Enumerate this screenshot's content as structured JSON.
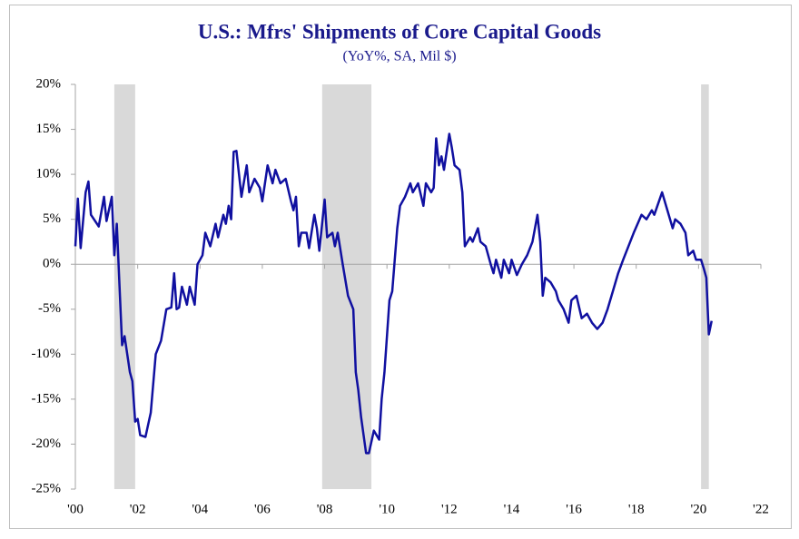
{
  "chart_data": {
    "type": "line",
    "title": "U.S.: Mfrs' Shipments of Core Capital Goods",
    "subtitle": "(YoY%, SA, Mil $)",
    "xlim": [
      2000,
      2022
    ],
    "ylim": [
      -25,
      20
    ],
    "xticks": [
      {
        "value": 2000,
        "label": "'00"
      },
      {
        "value": 2002,
        "label": "'02"
      },
      {
        "value": 2004,
        "label": "'04"
      },
      {
        "value": 2006,
        "label": "'06"
      },
      {
        "value": 2008,
        "label": "'08"
      },
      {
        "value": 2010,
        "label": "'10"
      },
      {
        "value": 2012,
        "label": "'12"
      },
      {
        "value": 2014,
        "label": "'14"
      },
      {
        "value": 2016,
        "label": "'16"
      },
      {
        "value": 2018,
        "label": "'18"
      },
      {
        "value": 2020,
        "label": "'20"
      },
      {
        "value": 2022,
        "label": "'22"
      }
    ],
    "yticks": [
      {
        "value": 20,
        "label": "20%"
      },
      {
        "value": 15,
        "label": "15%"
      },
      {
        "value": 10,
        "label": "10%"
      },
      {
        "value": 5,
        "label": "5%"
      },
      {
        "value": 0,
        "label": "0%"
      },
      {
        "value": -5,
        "label": "-5%"
      },
      {
        "value": -10,
        "label": "-10%"
      },
      {
        "value": -15,
        "label": "-15%"
      },
      {
        "value": -20,
        "label": "-20%"
      },
      {
        "value": -25,
        "label": "-25%"
      }
    ],
    "shaded_ranges": [
      [
        2001.25,
        2001.92
      ],
      [
        2007.92,
        2009.5
      ],
      [
        2020.08,
        2020.33
      ]
    ],
    "shade_color": "#d9d9d9",
    "series": [
      {
        "color": "#1010a0",
        "x": [
          2000.0,
          2000.08,
          2000.17,
          2000.33,
          2000.42,
          2000.5,
          2000.75,
          2000.92,
          2001.0,
          2001.17,
          2001.25,
          2001.33,
          2001.5,
          2001.58,
          2001.75,
          2001.83,
          2001.92,
          2002.0,
          2002.08,
          2002.25,
          2002.42,
          2002.58,
          2002.75,
          2002.92,
          2003.08,
          2003.17,
          2003.25,
          2003.33,
          2003.42,
          2003.58,
          2003.67,
          2003.83,
          2003.92,
          2004.08,
          2004.17,
          2004.33,
          2004.5,
          2004.58,
          2004.75,
          2004.83,
          2004.92,
          2005.0,
          2005.08,
          2005.17,
          2005.33,
          2005.5,
          2005.58,
          2005.75,
          2005.92,
          2006.0,
          2006.17,
          2006.33,
          2006.42,
          2006.58,
          2006.75,
          2006.92,
          2007.0,
          2007.08,
          2007.17,
          2007.25,
          2007.42,
          2007.5,
          2007.67,
          2007.75,
          2007.83,
          2008.0,
          2008.08,
          2008.25,
          2008.33,
          2008.42,
          2008.58,
          2008.75,
          2008.92,
          2009.0,
          2009.08,
          2009.17,
          2009.33,
          2009.42,
          2009.58,
          2009.75,
          2009.83,
          2009.92,
          2010.08,
          2010.17,
          2010.33,
          2010.42,
          2010.58,
          2010.75,
          2010.83,
          2011.0,
          2011.17,
          2011.25,
          2011.42,
          2011.5,
          2011.58,
          2011.67,
          2011.75,
          2011.83,
          2012.0,
          2012.08,
          2012.17,
          2012.33,
          2012.42,
          2012.5,
          2012.67,
          2012.75,
          2012.92,
          2013.0,
          2013.17,
          2013.33,
          2013.42,
          2013.5,
          2013.67,
          2013.75,
          2013.92,
          2014.0,
          2014.17,
          2014.33,
          2014.5,
          2014.67,
          2014.83,
          2014.92,
          2015.0,
          2015.08,
          2015.25,
          2015.42,
          2015.5,
          2015.67,
          2015.83,
          2015.92,
          2016.08,
          2016.25,
          2016.42,
          2016.58,
          2016.75,
          2016.92,
          2017.08,
          2017.25,
          2017.42,
          2017.58,
          2017.75,
          2017.92,
          2018.17,
          2018.33,
          2018.5,
          2018.58,
          2018.83,
          2019.0,
          2019.17,
          2019.25,
          2019.42,
          2019.58,
          2019.67,
          2019.83,
          2019.92,
          2020.08,
          2020.17,
          2020.25,
          2020.33,
          2020.42
        ],
        "values": [
          2,
          7.3,
          1.8,
          8,
          9.2,
          5.5,
          4.2,
          7.5,
          4.8,
          7.5,
          1,
          4.5,
          -9,
          -8,
          -12,
          -13,
          -17.5,
          -17.2,
          -19,
          -19.2,
          -16.5,
          -10,
          -8.5,
          -5,
          -4.8,
          -1,
          -5,
          -4.8,
          -2.5,
          -4.5,
          -2.5,
          -4.5,
          0,
          1,
          3.5,
          2,
          4.5,
          3,
          5.5,
          4.5,
          6.5,
          5,
          12.5,
          12.6,
          7.5,
          11,
          8,
          9.5,
          8.5,
          7,
          11,
          9,
          10.5,
          9,
          9.5,
          7,
          6,
          7.5,
          2,
          3.5,
          3.5,
          1.8,
          5.5,
          4,
          1.5,
          7.2,
          3,
          3.5,
          2,
          3.5,
          0,
          -3.5,
          -5,
          -12,
          -14,
          -17,
          -21,
          -21,
          -18.5,
          -19.5,
          -15,
          -12,
          -4,
          -3,
          4,
          6.5,
          7.5,
          9,
          8,
          9,
          6.5,
          9,
          8,
          8.5,
          14,
          11,
          12,
          10.5,
          14.5,
          13,
          11,
          10.5,
          8,
          2,
          3,
          2.5,
          4,
          2.5,
          2,
          0,
          -1,
          0.5,
          -1.5,
          0.5,
          -1,
          0.5,
          -1.2,
          0,
          1,
          2.5,
          5.5,
          2.5,
          -3.5,
          -1.5,
          -2,
          -3,
          -4,
          -5,
          -6.5,
          -4,
          -3.5,
          -6,
          -5.5,
          -6.5,
          -7.2,
          -6.5,
          -5,
          -3,
          -1,
          0.5,
          2,
          3.5,
          5.5,
          5,
          6,
          5.5,
          8,
          6,
          4,
          5,
          4.5,
          3.5,
          1,
          1.5,
          0.5,
          0.5,
          -0.5,
          -1.5,
          -7.8,
          -6.3
        ]
      }
    ]
  }
}
